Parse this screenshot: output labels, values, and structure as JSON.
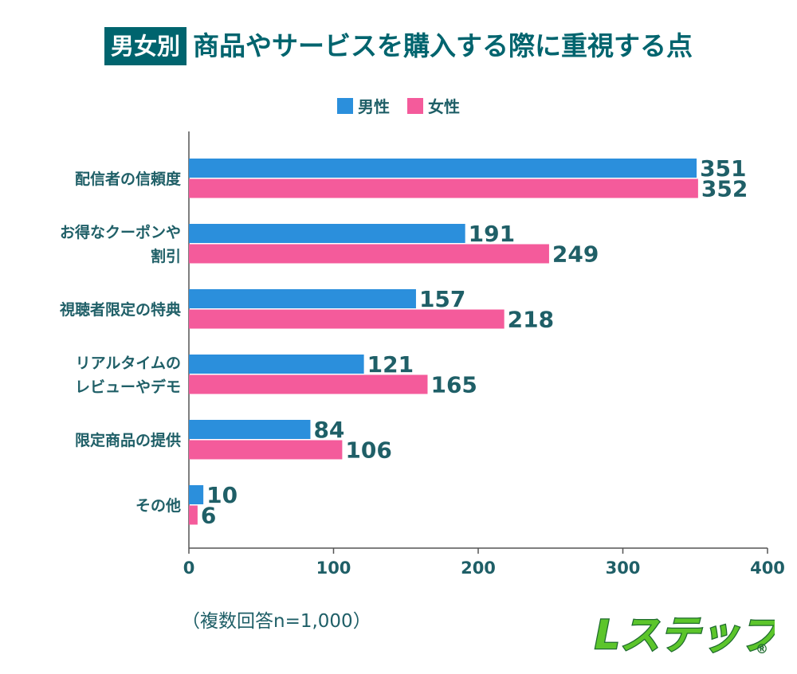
{
  "title": {
    "badge": "男女別",
    "main": "商品やサービスを購入する際に重視する点"
  },
  "note": "（複数回答n=1,000）",
  "logo": {
    "text": "Lステップ",
    "mark": "®"
  },
  "colors": {
    "male": "#2b8fdc",
    "female": "#f45b9b",
    "text": "#1f5f67",
    "title_bg": "#00646e",
    "logo_fill": "#5cc52b",
    "logo_outline": "#1e6b2e"
  },
  "chart_data": {
    "type": "bar",
    "orientation": "horizontal",
    "categories": [
      [
        "配信者の信頼度"
      ],
      [
        "お得なクーポンや",
        "割引"
      ],
      [
        "視聴者限定の特典"
      ],
      [
        "リアルタイムの",
        "レビューやデモ"
      ],
      [
        "限定商品の提供"
      ],
      [
        "その他"
      ]
    ],
    "series": [
      {
        "name": "男性",
        "values": [
          351,
          191,
          157,
          121,
          84,
          10
        ]
      },
      {
        "name": "女性",
        "values": [
          352,
          249,
          218,
          165,
          106,
          6
        ]
      }
    ],
    "xlim": [
      0,
      400
    ],
    "xticks": [
      "0",
      "100",
      "200",
      "300",
      "400"
    ],
    "grid": false,
    "legend": "top-center"
  }
}
